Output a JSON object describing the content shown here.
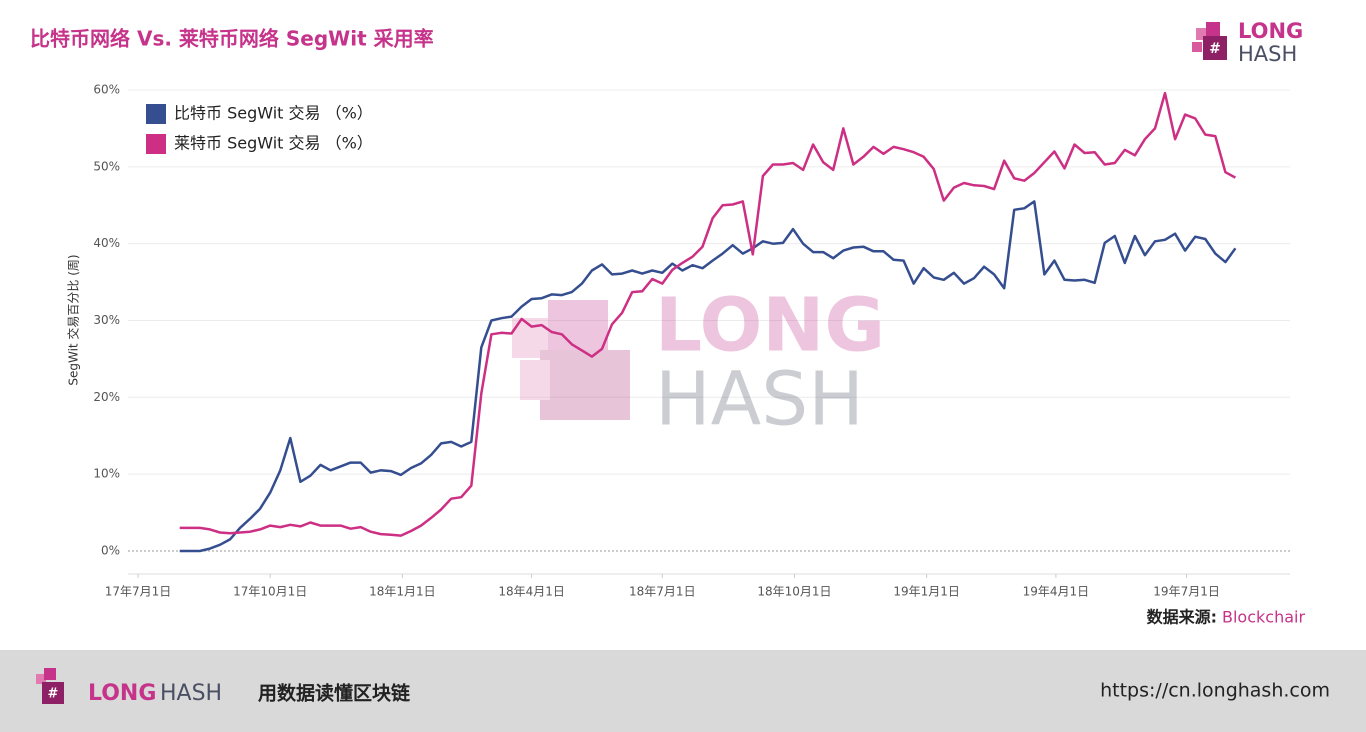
{
  "header": {
    "title": "比特币网络 Vs. 莱特币网络 SegWit 采用率",
    "logo_top": "LONG",
    "logo_bottom": "HASH"
  },
  "watermark": {
    "top": "LONG",
    "bottom": "HASH"
  },
  "source": {
    "label": "数据来源:",
    "name": "Blockchair"
  },
  "footer": {
    "logo_left": "LONG",
    "logo_right": "HASH",
    "slogan": "用数据读懂区块链",
    "url": "https://cn.longhash.com"
  },
  "chart_data": {
    "type": "line",
    "ylabel": "SegWit 交易百分比 (周)",
    "x": [
      "2017-07-30",
      "2017-08-06",
      "2017-08-13",
      "2017-08-20",
      "2017-08-27",
      "2017-09-03",
      "2017-09-10",
      "2017-09-17",
      "2017-09-24",
      "2017-10-01",
      "2017-10-08",
      "2017-10-15",
      "2017-10-22",
      "2017-10-29",
      "2017-11-05",
      "2017-11-12",
      "2017-11-19",
      "2017-11-26",
      "2017-12-03",
      "2017-12-10",
      "2017-12-17",
      "2017-12-24",
      "2017-12-31",
      "2018-01-07",
      "2018-01-14",
      "2018-01-21",
      "2018-01-28",
      "2018-02-04",
      "2018-02-11",
      "2018-02-18",
      "2018-02-25",
      "2018-03-04",
      "2018-03-11",
      "2018-03-18",
      "2018-03-25",
      "2018-04-01",
      "2018-04-08",
      "2018-04-15",
      "2018-04-22",
      "2018-04-29",
      "2018-05-06",
      "2018-05-13",
      "2018-05-20",
      "2018-05-27",
      "2018-06-03",
      "2018-06-10",
      "2018-06-17",
      "2018-06-24",
      "2018-07-01",
      "2018-07-08",
      "2018-07-15",
      "2018-07-22",
      "2018-07-29",
      "2018-08-05",
      "2018-08-12",
      "2018-08-19",
      "2018-08-26",
      "2018-09-02",
      "2018-09-09",
      "2018-09-16",
      "2018-09-23",
      "2018-09-30",
      "2018-10-07",
      "2018-10-14",
      "2018-10-21",
      "2018-10-28",
      "2018-11-04",
      "2018-11-11",
      "2018-11-18",
      "2018-11-25",
      "2018-12-02",
      "2018-12-09",
      "2018-12-16",
      "2018-12-23",
      "2018-12-30",
      "2019-01-06",
      "2019-01-13",
      "2019-01-20",
      "2019-01-27",
      "2019-02-03",
      "2019-02-10",
      "2019-02-17",
      "2019-02-24",
      "2019-03-03",
      "2019-03-10",
      "2019-03-17",
      "2019-03-24",
      "2019-03-31",
      "2019-04-07",
      "2019-04-14",
      "2019-04-21",
      "2019-04-28",
      "2019-05-05",
      "2019-05-12",
      "2019-05-19",
      "2019-05-26",
      "2019-06-02",
      "2019-06-09",
      "2019-06-16",
      "2019-06-23",
      "2019-06-30",
      "2019-07-07",
      "2019-07-14",
      "2019-07-21",
      "2019-07-28",
      "2019-08-04"
    ],
    "series": [
      {
        "name": "比特币 SegWit 交易 （%）",
        "color": "#354e8f",
        "values": [
          0,
          0,
          0,
          0.3,
          0.8,
          1.5,
          3,
          4.2,
          5.5,
          7.6,
          10.5,
          14.7,
          9,
          9.8,
          11.2,
          10.5,
          11,
          11.5,
          11.5,
          10.2,
          10.5,
          10.4,
          9.9,
          10.8,
          11.4,
          12.5,
          14,
          14.2,
          13.6,
          14.2,
          26.5,
          30,
          30.3,
          30.5,
          31.8,
          32.8,
          32.9,
          33.4,
          33.3,
          33.7,
          34.8,
          36.5,
          37.3,
          36,
          36.1,
          36.5,
          36.1,
          36.5,
          36.2,
          37.4,
          36.5,
          37.2,
          36.8,
          37.8,
          38.7,
          39.8,
          38.7,
          39.4,
          40.3,
          40,
          40.1,
          41.9,
          40,
          38.9,
          38.9,
          38.1,
          39.1,
          39.5,
          39.6,
          39,
          39,
          37.9,
          37.8,
          34.8,
          36.8,
          35.6,
          35.3,
          36.2,
          34.8,
          35.5,
          37,
          36,
          34.2,
          44.4,
          44.6,
          45.5,
          36,
          37.8,
          35.3,
          35.2,
          35.3,
          34.9,
          40.1,
          41,
          37.5,
          41,
          38.5,
          40.3,
          40.5,
          41.3,
          39.1,
          40.9,
          40.6,
          38.7,
          37.6,
          39.4
        ]
      },
      {
        "name": "莱特币 SegWit 交易 （%）",
        "color": "#cc2f83",
        "values": [
          3,
          3,
          3,
          2.8,
          2.4,
          2.3,
          2.4,
          2.5,
          2.8,
          3.3,
          3.1,
          3.4,
          3.2,
          3.7,
          3.3,
          3.3,
          3.3,
          2.9,
          3.1,
          2.5,
          2.2,
          2.1,
          2,
          2.6,
          3.3,
          4.3,
          5.4,
          6.8,
          7,
          8.5,
          20.5,
          28.2,
          28.4,
          28.3,
          30.2,
          29.2,
          29.4,
          28.5,
          28.2,
          26.9,
          26.1,
          25.3,
          26.3,
          29.5,
          31,
          33.7,
          33.8,
          35.4,
          34.8,
          36.6,
          37.5,
          38.3,
          39.6,
          43.3,
          45,
          45.1,
          45.5,
          38.6,
          48.8,
          50.3,
          50.3,
          50.5,
          49.6,
          52.9,
          50.6,
          49.6,
          55,
          50.3,
          51.3,
          52.6,
          51.7,
          52.6,
          52.3,
          51.9,
          51.3,
          49.7,
          45.6,
          47.3,
          47.9,
          47.6,
          47.5,
          47.1,
          50.8,
          48.5,
          48.2,
          49.2,
          50.6,
          52,
          49.8,
          52.9,
          51.8,
          51.9,
          50.3,
          50.5,
          52.2,
          51.5,
          53.6,
          55,
          59.6,
          53.6,
          56.8,
          56.3,
          54.2,
          54,
          49.3,
          48.6
        ]
      }
    ],
    "xlim": [
      "2017-06-24",
      "2019-09-11"
    ],
    "xticks": [
      {
        "value": "2017-07-01",
        "label": "17年7月1日"
      },
      {
        "value": "2017-10-01",
        "label": "17年10月1日"
      },
      {
        "value": "2018-01-01",
        "label": "18年1月1日"
      },
      {
        "value": "2018-04-01",
        "label": "18年4月1日"
      },
      {
        "value": "2018-07-01",
        "label": "18年7月1日"
      },
      {
        "value": "2018-10-01",
        "label": "18年10月1日"
      },
      {
        "value": "2019-01-01",
        "label": "19年1月1日"
      },
      {
        "value": "2019-04-01",
        "label": "19年4月1日"
      },
      {
        "value": "2019-07-01",
        "label": "19年7月1日"
      }
    ],
    "ylim": [
      -3,
      60
    ],
    "yticks": [
      {
        "value": 0,
        "label": "0%"
      },
      {
        "value": 10,
        "label": "10%"
      },
      {
        "value": 20,
        "label": "20%"
      },
      {
        "value": 30,
        "label": "30%"
      },
      {
        "value": 40,
        "label": "40%"
      },
      {
        "value": 50,
        "label": "50%"
      },
      {
        "value": 60,
        "label": "60%"
      }
    ],
    "grid": true,
    "legend": "top-left"
  }
}
